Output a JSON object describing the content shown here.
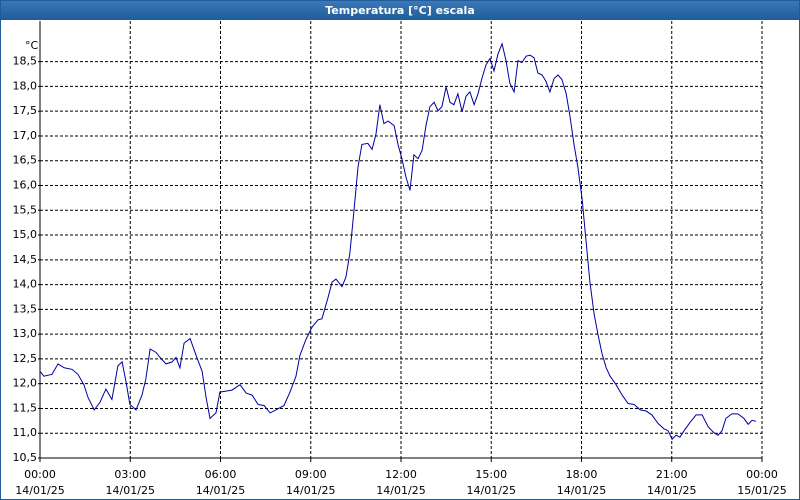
{
  "chart_data": {
    "type": "line",
    "title": "Temperatura [°C] escala",
    "y_unit": "°C",
    "color": "#0000a0",
    "grid": true,
    "xlim": [
      0,
      24
    ],
    "ylim": [
      10.5,
      19.32
    ],
    "xticks": [
      {
        "value": 0,
        "label": "00:00"
      },
      {
        "value": 3,
        "label": "03:00"
      },
      {
        "value": 6,
        "label": "06:00"
      },
      {
        "value": 9,
        "label": "09:00"
      },
      {
        "value": 12,
        "label": "12:00"
      },
      {
        "value": 15,
        "label": "15:00"
      },
      {
        "value": 18,
        "label": "18:00"
      },
      {
        "value": 21,
        "label": "21:00"
      },
      {
        "value": 24,
        "label": "00:00"
      }
    ],
    "xtick_dates": [
      "14/01/25",
      "14/01/25",
      "14/01/25",
      "14/01/25",
      "14/01/25",
      "14/01/25",
      "14/01/25",
      "14/01/25",
      "15/01/25"
    ],
    "yticks": [
      {
        "value": 10.5,
        "label": "10,5"
      },
      {
        "value": 11,
        "label": "11,0"
      },
      {
        "value": 11.5,
        "label": "11,5"
      },
      {
        "value": 12,
        "label": "12,0"
      },
      {
        "value": 12.5,
        "label": "12,5"
      },
      {
        "value": 13,
        "label": "13,0"
      },
      {
        "value": 13.5,
        "label": "13,5"
      },
      {
        "value": 14,
        "label": "14,0"
      },
      {
        "value": 14.5,
        "label": "14,5"
      },
      {
        "value": 15,
        "label": "15,0"
      },
      {
        "value": 15.5,
        "label": "15,5"
      },
      {
        "value": 16,
        "label": "16,0"
      },
      {
        "value": 16.5,
        "label": "16,5"
      },
      {
        "value": 17,
        "label": "17,0"
      },
      {
        "value": 17.5,
        "label": "17,5"
      },
      {
        "value": 18,
        "label": "18,0"
      },
      {
        "value": 18.5,
        "label": "18,5"
      }
    ],
    "x": [
      0,
      0.13,
      0.4,
      0.6,
      0.8,
      1.06,
      1.26,
      1.46,
      1.6,
      1.8,
      1.99,
      2.19,
      2.39,
      2.59,
      2.73,
      2.86,
      2.99,
      3.19,
      3.39,
      3.52,
      3.66,
      3.86,
      3.99,
      4.19,
      4.39,
      4.52,
      4.65,
      4.79,
      4.99,
      5.19,
      5.39,
      5.52,
      5.65,
      5.85,
      5.98,
      6.18,
      6.38,
      6.65,
      6.85,
      7.05,
      7.25,
      7.45,
      7.65,
      7.84,
      8.11,
      8.31,
      8.51,
      8.64,
      8.84,
      9.04,
      9.24,
      9.37,
      9.57,
      9.71,
      9.84,
      10.04,
      10.17,
      10.3,
      10.44,
      10.57,
      10.7,
      10.9,
      11.04,
      11.17,
      11.3,
      11.43,
      11.57,
      11.77,
      11.9,
      12.03,
      12.17,
      12.3,
      12.43,
      12.57,
      12.7,
      12.83,
      12.96,
      13.1,
      13.23,
      13.36,
      13.5,
      13.63,
      13.76,
      13.89,
      14.03,
      14.16,
      14.29,
      14.43,
      14.56,
      14.69,
      14.83,
      14.96,
      15.09,
      15.22,
      15.36,
      15.49,
      15.62,
      15.76,
      15.89,
      16.02,
      16.16,
      16.29,
      16.42,
      16.55,
      16.69,
      16.82,
      16.95,
      17.09,
      17.22,
      17.35,
      17.49,
      17.62,
      17.75,
      17.88,
      18.02,
      18.15,
      18.28,
      18.42,
      18.55,
      18.68,
      18.82,
      18.95,
      19.15,
      19.35,
      19.55,
      19.75,
      19.95,
      20.14,
      20.34,
      20.54,
      20.74,
      20.88,
      21.01,
      21.14,
      21.27,
      21.41,
      21.61,
      21.81,
      22.01,
      22.21,
      22.4,
      22.54,
      22.67,
      22.8,
      23,
      23.2,
      23.4,
      23.54,
      23.67,
      23.8
    ],
    "values": [
      12.25,
      12.15,
      12.19,
      12.4,
      12.32,
      12.29,
      12.19,
      11.98,
      11.72,
      11.47,
      11.62,
      11.89,
      11.68,
      12.36,
      12.44,
      12.04,
      11.58,
      11.47,
      11.77,
      12.1,
      12.7,
      12.63,
      12.53,
      12.4,
      12.44,
      12.53,
      12.32,
      12.82,
      12.91,
      12.57,
      12.25,
      11.72,
      11.3,
      11.41,
      11.83,
      11.85,
      11.87,
      11.98,
      11.81,
      11.77,
      11.58,
      11.56,
      11.41,
      11.47,
      11.56,
      11.83,
      12.15,
      12.57,
      12.89,
      13.14,
      13.29,
      13.31,
      13.73,
      14.05,
      14.11,
      13.96,
      14.15,
      14.64,
      15.52,
      16.37,
      16.83,
      16.85,
      16.73,
      17.04,
      17.63,
      17.25,
      17.3,
      17.21,
      16.83,
      16.54,
      16.16,
      15.9,
      16.62,
      16.54,
      16.71,
      17.21,
      17.59,
      17.68,
      17.51,
      17.59,
      17.99,
      17.68,
      17.63,
      17.85,
      17.49,
      17.8,
      17.89,
      17.63,
      17.85,
      18.16,
      18.44,
      18.56,
      18.31,
      18.65,
      18.86,
      18.52,
      18.06,
      17.89,
      18.52,
      18.48,
      18.61,
      18.63,
      18.58,
      18.27,
      18.23,
      18.1,
      17.89,
      18.16,
      18.23,
      18.14,
      17.85,
      17.38,
      16.83,
      16.37,
      15.73,
      14.89,
      14.05,
      13.41,
      12.99,
      12.61,
      12.32,
      12.15,
      11.98,
      11.77,
      11.6,
      11.58,
      11.47,
      11.45,
      11.37,
      11.2,
      11.09,
      11.05,
      10.88,
      10.96,
      10.92,
      11.05,
      11.22,
      11.37,
      11.37,
      11.13,
      11.01,
      10.96,
      11.05,
      11.3,
      11.39,
      11.39,
      11.3,
      11.18,
      11.26,
      11.24
    ]
  }
}
